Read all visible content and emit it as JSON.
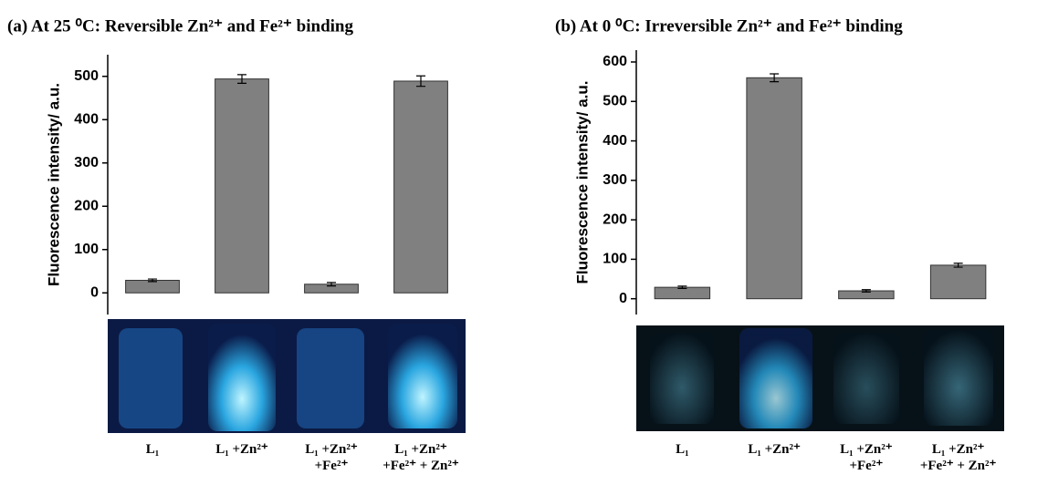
{
  "chart_data": [
    {
      "type": "bar",
      "title": "(a) At 25 ⁰C: Reversible Zn²⁺ and Fe²⁺ binding",
      "y_label": "Fluorescence intensity/ a.u.",
      "categories": [
        "L₁",
        "L₁ +Zn²⁺",
        "L₁ +Zn²⁺ +Fe²⁺",
        "L₁ +Zn²⁺ +Fe²⁺ + Zn²⁺"
      ],
      "values": [
        29,
        494,
        20,
        489
      ],
      "errors": [
        3,
        10,
        4,
        12
      ],
      "color": "#808080",
      "ylim": [
        -50,
        550
      ],
      "yticks": [
        0,
        100,
        200,
        300,
        400,
        500
      ]
    },
    {
      "type": "bar",
      "title": "(b) At 0 ⁰C: Irreversible Zn²⁺ and Fe²⁺ binding",
      "y_label": "Fluorescence intensity/ a.u.",
      "categories": [
        "L₁",
        "L₁ +Zn²⁺",
        "L₁ +Zn²⁺ +Fe²⁺",
        "L₁ +Zn²⁺ +Fe²⁺ + Zn²⁺"
      ],
      "values": [
        29,
        560,
        20,
        85
      ],
      "errors": [
        3,
        10,
        3,
        5
      ],
      "color": "#808080",
      "ylim": [
        -40,
        630
      ],
      "yticks": [
        0,
        100,
        200,
        300,
        400,
        500,
        600
      ]
    }
  ]
}
